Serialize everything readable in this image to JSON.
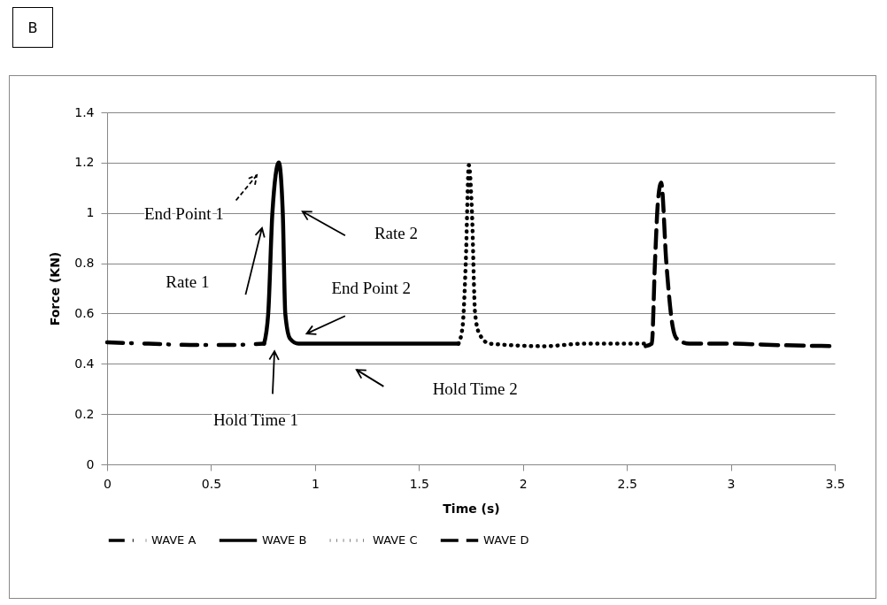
{
  "chart_data": {
    "type": "line",
    "title": "B",
    "xlabel": "Time (s)",
    "ylabel": "Force (KN)",
    "xlim": [
      0,
      3.5
    ],
    "xticks": [
      0,
      0.5,
      1,
      1.5,
      2,
      2.5,
      3,
      3.5
    ],
    "ylim": [
      0,
      1.4
    ],
    "yticks": [
      0,
      0.2,
      0.4,
      0.6,
      0.8,
      1,
      1.2,
      1.4
    ],
    "grid": "y",
    "legend": "bottom",
    "series": [
      {
        "name": "WAVE A",
        "color": "#000000",
        "line_style": "dashdot",
        "x": [
          0,
          0.2,
          0.4,
          0.6,
          0.755
        ],
        "values": [
          0.485,
          0.48,
          0.475,
          0.475,
          0.48
        ]
      },
      {
        "name": "WAVE B",
        "color": "#000000",
        "line_style": "solid",
        "x": [
          0.755,
          0.775,
          0.795,
          0.826,
          0.845,
          0.857,
          0.88,
          0.92,
          1.2,
          1.35,
          1.5,
          1.69
        ],
        "values": [
          0.48,
          0.6,
          1.0,
          1.2,
          1.0,
          0.6,
          0.5,
          0.48,
          0.48,
          0.48,
          0.48,
          0.48
        ]
      },
      {
        "name": "WAVE C",
        "color": "#000000",
        "line_style": "dotted",
        "x": [
          1.69,
          1.71,
          1.725,
          1.74,
          1.755,
          1.77,
          1.79,
          1.84,
          2.1,
          2.3,
          2.59
        ],
        "values": [
          0.48,
          0.55,
          0.8,
          1.19,
          1.0,
          0.6,
          0.52,
          0.48,
          0.47,
          0.48,
          0.48
        ]
      },
      {
        "name": "WAVE D",
        "color": "#000000",
        "line_style": "dashed",
        "x": [
          2.59,
          2.62,
          2.635,
          2.65,
          2.665,
          2.69,
          2.72,
          2.74,
          2.8,
          3.0,
          3.2,
          3.5
        ],
        "values": [
          0.47,
          0.48,
          0.8,
          1.05,
          1.12,
          0.8,
          0.55,
          0.5,
          0.48,
          0.48,
          0.475,
          0.47
        ]
      }
    ],
    "annotations": [
      "End Point 1",
      "Rate 1",
      "Rate 2",
      "End Point 2",
      "Hold Time 1",
      "Hold Time 2"
    ]
  }
}
